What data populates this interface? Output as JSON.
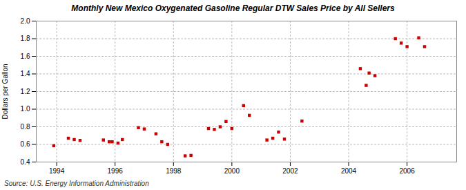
{
  "chart_data": {
    "type": "scatter",
    "title": "Monthly New Mexico Oxygenated Gasoline Regular DTW Sales Price by All Sellers",
    "ylabel": "Dollars per Gallon",
    "source": "Source: U.S. Energy Information Administration",
    "x": [
      1993.9,
      1994.4,
      1994.6,
      1994.8,
      1995.6,
      1995.8,
      1995.9,
      1996.1,
      1996.25,
      1996.8,
      1997.0,
      1997.4,
      1997.6,
      1997.8,
      1998.4,
      1998.6,
      1999.2,
      1999.4,
      1999.6,
      1999.8,
      2000.0,
      2000.4,
      2000.6,
      2001.2,
      2001.4,
      2001.6,
      2001.8,
      2002.4,
      2004.4,
      2004.6,
      2004.7,
      2004.9,
      2005.6,
      2005.8,
      2006.0,
      2006.4,
      2006.6
    ],
    "values": [
      0.585,
      0.67,
      0.655,
      0.645,
      0.65,
      0.63,
      0.63,
      0.615,
      0.655,
      0.79,
      0.775,
      0.72,
      0.63,
      0.6,
      0.47,
      0.475,
      0.78,
      0.77,
      0.8,
      0.86,
      0.78,
      1.04,
      0.93,
      0.65,
      0.67,
      0.74,
      0.66,
      0.865,
      1.46,
      1.27,
      1.41,
      1.38,
      1.8,
      1.75,
      1.71,
      1.81,
      1.71
    ],
    "color": "#cc0000",
    "marker": "square",
    "xlim": [
      1993.3,
      2007.7
    ],
    "ylim": [
      0.4,
      2.0
    ],
    "xticks": [
      1994,
      1996,
      1998,
      2000,
      2002,
      2004,
      2006
    ],
    "yticks": [
      0.4,
      0.6,
      0.8,
      {
        "value": 1.0,
        "label": "1.0"
      },
      1.2,
      1.4,
      1.6,
      1.8,
      {
        "value": 2.0,
        "label": "2.0"
      }
    ],
    "grid": true
  }
}
